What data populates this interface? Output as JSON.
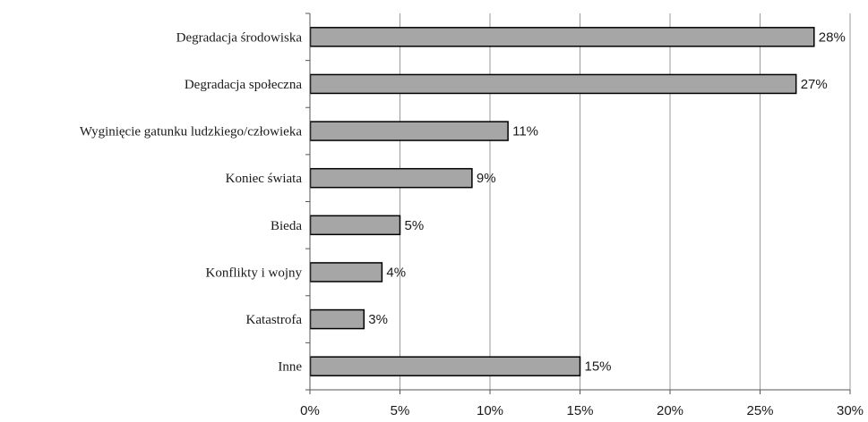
{
  "chart_data": {
    "type": "bar",
    "orientation": "horizontal",
    "categories": [
      "Degradacja środowiska",
      "Degradacja społeczna",
      "Wyginięcie gatunku ludzkiego/człowieka",
      "Koniec świata",
      "Bieda",
      "Konflikty i wojny",
      "Katastrofa",
      "Inne"
    ],
    "values": [
      28,
      27,
      11,
      9,
      5,
      4,
      3,
      15
    ],
    "data_labels": [
      "28%",
      "27%",
      "11%",
      "9%",
      "5%",
      "4%",
      "3%",
      "15%"
    ],
    "xlim": [
      0,
      30
    ],
    "x_ticks": [
      0,
      5,
      10,
      15,
      20,
      25,
      30
    ],
    "x_tick_labels": [
      "0%",
      "5%",
      "10%",
      "15%",
      "20%",
      "25%",
      "30%"
    ],
    "grid": "vertical",
    "legend": "none",
    "bar_color": "#a6a6a6",
    "bar_edge_color": "#000000",
    "grid_color": "#9a9a9a"
  }
}
